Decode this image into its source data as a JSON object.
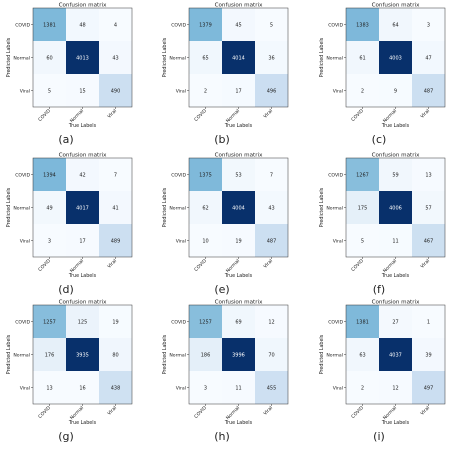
{
  "chart_data": [
    {
      "type": "heatmap",
      "panel_label": "(a)",
      "title": "Confusion matrix",
      "xlabel": "True Labels",
      "ylabel": "Predicted Labels",
      "categories": [
        "COVID",
        "Normal",
        "Viral"
      ],
      "values": [
        [
          1381,
          48,
          4
        ],
        [
          60,
          4013,
          43
        ],
        [
          5,
          15,
          490
        ]
      ]
    },
    {
      "type": "heatmap",
      "panel_label": "(b)",
      "title": "Confusion matrix",
      "xlabel": "True Labels",
      "ylabel": "Predicted Labels",
      "categories": [
        "COVID",
        "Normal",
        "Viral"
      ],
      "values": [
        [
          1379,
          45,
          5
        ],
        [
          65,
          4014,
          36
        ],
        [
          2,
          17,
          496
        ]
      ]
    },
    {
      "type": "heatmap",
      "panel_label": "(c)",
      "title": "Confusion matrix",
      "xlabel": "True Labels",
      "ylabel": "Predicted Labels",
      "categories": [
        "COVID",
        "Normal",
        "Viral"
      ],
      "values": [
        [
          1383,
          64,
          3
        ],
        [
          61,
          4003,
          47
        ],
        [
          2,
          9,
          487
        ]
      ]
    },
    {
      "type": "heatmap",
      "panel_label": "(d)",
      "title": "Confusion matrix",
      "xlabel": "True Labels",
      "ylabel": "Predicted Labels",
      "categories": [
        "COVID",
        "Normal",
        "Viral"
      ],
      "values": [
        [
          1394,
          42,
          7
        ],
        [
          49,
          4017,
          41
        ],
        [
          3,
          17,
          489
        ]
      ]
    },
    {
      "type": "heatmap",
      "panel_label": "(e)",
      "title": "Confusion matrix",
      "xlabel": "True Labels",
      "ylabel": "Predicted Labels",
      "categories": [
        "COVID",
        "Normal",
        "Viral"
      ],
      "values": [
        [
          1375,
          53,
          7
        ],
        [
          62,
          4004,
          43
        ],
        [
          10,
          19,
          487
        ]
      ]
    },
    {
      "type": "heatmap",
      "panel_label": "(f)",
      "title": "Confusion matrix",
      "xlabel": "True Labels",
      "ylabel": "Predicted Labels",
      "categories": [
        "COVID",
        "Normal",
        "Viral"
      ],
      "values": [
        [
          1267,
          59,
          13
        ],
        [
          175,
          4006,
          57
        ],
        [
          5,
          11,
          467
        ]
      ]
    },
    {
      "type": "heatmap",
      "panel_label": "(g)",
      "title": "Confusion matrix",
      "xlabel": "True Labels",
      "ylabel": "Predicted Labels",
      "categories": [
        "COVID",
        "Normal",
        "Viral"
      ],
      "values": [
        [
          1257,
          125,
          19
        ],
        [
          176,
          3935,
          80
        ],
        [
          13,
          16,
          438
        ]
      ]
    },
    {
      "type": "heatmap",
      "panel_label": "(h)",
      "title": "Confusion matrix",
      "xlabel": "True Labels",
      "ylabel": "Predicted Labels",
      "categories": [
        "COVID",
        "Normal",
        "Viral"
      ],
      "values": [
        [
          1257,
          69,
          12
        ],
        [
          186,
          3996,
          70
        ],
        [
          3,
          11,
          455
        ]
      ]
    },
    {
      "type": "heatmap",
      "panel_label": "(i)",
      "title": "Confusion matrix",
      "xlabel": "True Labels",
      "ylabel": "Predicted Labels",
      "categories": [
        "COVID",
        "Normal",
        "Viral"
      ],
      "values": [
        [
          1381,
          27,
          1
        ],
        [
          63,
          4037,
          39
        ],
        [
          2,
          12,
          497
        ]
      ]
    }
  ],
  "colors": {
    "scale_low": "#f7fbff",
    "scale_high": "#08306b",
    "text_dark": "#222222",
    "text_light": "#ffffff"
  }
}
